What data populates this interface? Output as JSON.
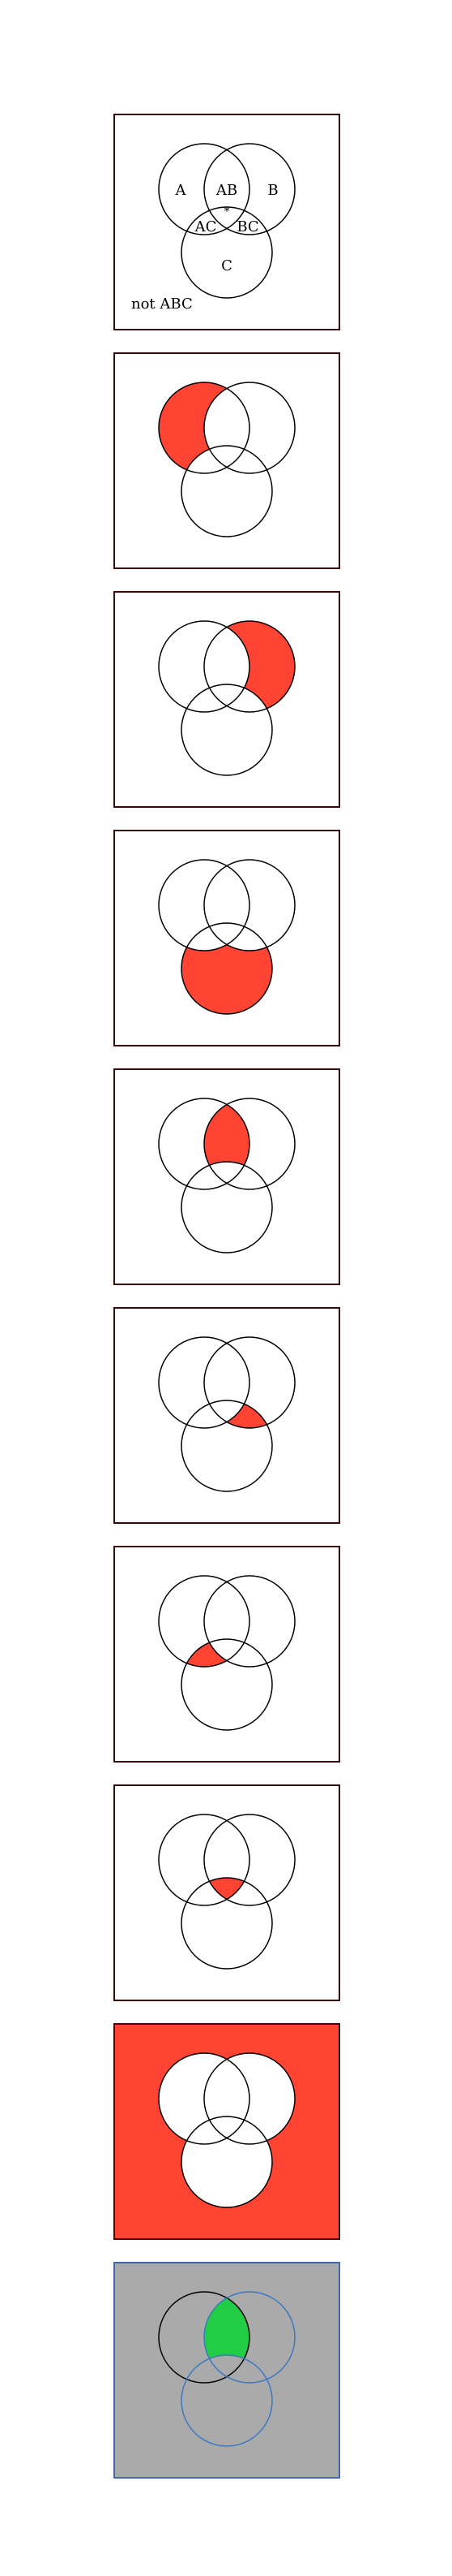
{
  "labels": {
    "a": "A",
    "b": "B",
    "c": "C",
    "ab": "AB",
    "ac": "AC",
    "bc": "BC",
    "abc": "*",
    "outside": "not ABC"
  },
  "colors": {
    "background": "#ffffff",
    "frame": "#3a0a0a",
    "frame_blue": "#4466b0",
    "highlight": "#ff4433",
    "highlight_green": "#22cc44",
    "circle_stroke": "#000000",
    "circle_stroke_blue": "#3a78c0",
    "gray_fill": "#aaaaaa"
  },
  "panels": [
    {
      "name": "labels",
      "region": "legend"
    },
    {
      "name": "a-only",
      "region": "A only"
    },
    {
      "name": "b-only",
      "region": "B only"
    },
    {
      "name": "c-only",
      "region": "C only"
    },
    {
      "name": "ab-only",
      "region": "AB only"
    },
    {
      "name": "bc-only",
      "region": "BC only"
    },
    {
      "name": "ac-only",
      "region": "AC only"
    },
    {
      "name": "abc",
      "region": "ABC"
    },
    {
      "name": "outside",
      "region": "not ABC"
    },
    {
      "name": "ab-highlight",
      "region": "AB only"
    }
  ]
}
